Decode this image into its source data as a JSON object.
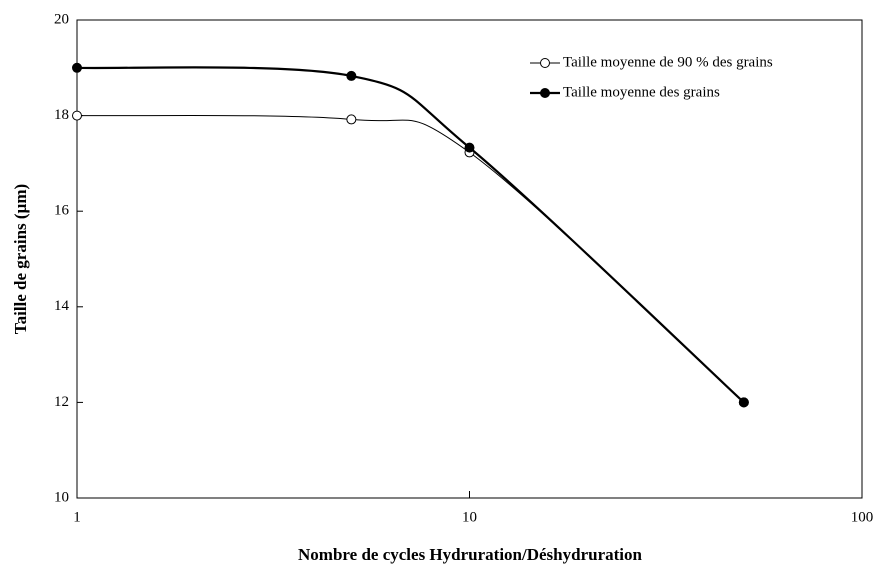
{
  "chart_data": {
    "type": "line",
    "x_label": "Nombre de cycles Hydruration/Déshydruration",
    "y_label": "Taille de grains (µm)",
    "x": [
      1,
      5,
      10,
      50
    ],
    "xscale": "log",
    "xlim": [
      1,
      100
    ],
    "xticks": [
      1,
      10,
      100
    ],
    "ylim": [
      10,
      20
    ],
    "yticks": [
      10,
      12,
      14,
      16,
      18,
      20
    ],
    "legend": "upper right",
    "series": [
      {
        "name": "Taille moyenne de 90 % des grains",
        "color": "#000000",
        "marker": "open",
        "values": [
          18,
          17.92,
          17.23,
          12
        ]
      },
      {
        "name": "Taille moyenne des grains",
        "color": "#000000",
        "marker": "filled",
        "values": [
          19,
          18.83,
          17.33,
          12
        ]
      }
    ]
  }
}
